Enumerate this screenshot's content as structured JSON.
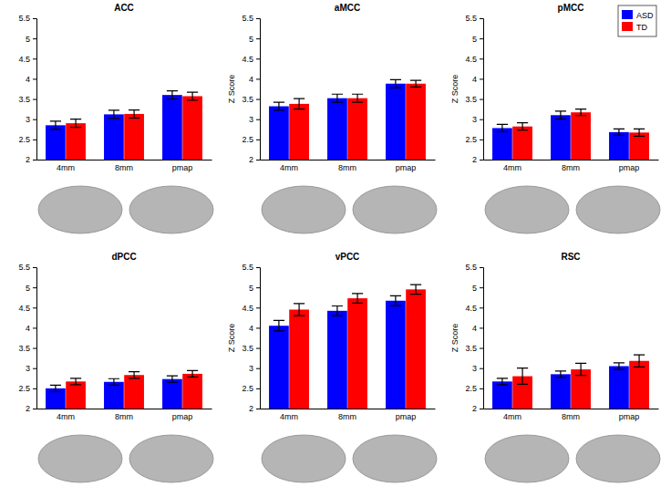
{
  "chart_data": [
    {
      "type": "bar",
      "title": "ACC",
      "categories": [
        "4mm",
        "8mm",
        "pmap"
      ],
      "series": [
        {
          "name": "ASD",
          "color": "#0000ff",
          "values": [
            2.85,
            3.12,
            3.6
          ],
          "errors": [
            0.1,
            0.1,
            0.1
          ]
        },
        {
          "name": "TD",
          "color": "#ff0000",
          "values": [
            2.9,
            3.13,
            3.57
          ],
          "errors": [
            0.1,
            0.1,
            0.1
          ]
        }
      ],
      "ylim": [
        2,
        5.5
      ],
      "yticks": [
        2,
        2.5,
        3,
        3.5,
        4,
        4.5,
        5,
        5.5
      ]
    },
    {
      "type": "bar",
      "title": "aMCC",
      "ylabel": "Z Score",
      "categories": [
        "4mm",
        "8mm",
        "pmap"
      ],
      "series": [
        {
          "name": "ASD",
          "color": "#0000ff",
          "values": [
            3.32,
            3.52,
            3.88
          ],
          "errors": [
            0.1,
            0.1,
            0.1
          ]
        },
        {
          "name": "TD",
          "color": "#ff0000",
          "values": [
            3.38,
            3.52,
            3.88
          ],
          "errors": [
            0.13,
            0.1,
            0.08
          ]
        }
      ],
      "ylim": [
        2,
        5.5
      ],
      "yticks": [
        2,
        2.5,
        3,
        3.5,
        4,
        4.5,
        5,
        5.5
      ]
    },
    {
      "type": "bar",
      "title": "pMCC",
      "ylabel": "Z Score",
      "categories": [
        "4mm",
        "8mm",
        "pmap"
      ],
      "series": [
        {
          "name": "ASD",
          "color": "#0000ff",
          "values": [
            2.78,
            3.1,
            2.68
          ],
          "errors": [
            0.09,
            0.1,
            0.08
          ]
        },
        {
          "name": "TD",
          "color": "#ff0000",
          "values": [
            2.82,
            3.17,
            2.67
          ],
          "errors": [
            0.09,
            0.08,
            0.09
          ]
        }
      ],
      "ylim": [
        2,
        5.5
      ],
      "yticks": [
        2,
        2.5,
        3,
        3.5,
        4,
        4.5,
        5,
        5.5
      ],
      "legend": "top-right"
    },
    {
      "type": "bar",
      "title": "dPCC",
      "categories": [
        "4mm",
        "8mm",
        "pmap"
      ],
      "series": [
        {
          "name": "ASD",
          "color": "#0000ff",
          "values": [
            2.5,
            2.66,
            2.73
          ],
          "errors": [
            0.08,
            0.08,
            0.08
          ]
        },
        {
          "name": "TD",
          "color": "#ff0000",
          "values": [
            2.67,
            2.83,
            2.86
          ],
          "errors": [
            0.08,
            0.08,
            0.08
          ]
        }
      ],
      "ylim": [
        2,
        5.5
      ],
      "yticks": [
        2,
        2.5,
        3,
        3.5,
        4,
        4.5,
        5,
        5.5
      ]
    },
    {
      "type": "bar",
      "title": "vPCC",
      "ylabel": "Z Score",
      "categories": [
        "4mm",
        "8mm",
        "pmap"
      ],
      "series": [
        {
          "name": "ASD",
          "color": "#0000ff",
          "values": [
            4.05,
            4.42,
            4.67
          ],
          "errors": [
            0.13,
            0.12,
            0.12
          ]
        },
        {
          "name": "TD",
          "color": "#ff0000",
          "values": [
            4.45,
            4.73,
            4.95
          ],
          "errors": [
            0.15,
            0.12,
            0.12
          ]
        }
      ],
      "ylim": [
        2,
        5.5
      ],
      "yticks": [
        2,
        2.5,
        3,
        3.5,
        4,
        4.5,
        5,
        5.5
      ]
    },
    {
      "type": "bar",
      "title": "RSC",
      "ylabel": "Z Score",
      "categories": [
        "4mm",
        "8mm",
        "pmap"
      ],
      "series": [
        {
          "name": "ASD",
          "color": "#0000ff",
          "values": [
            2.67,
            2.85,
            3.05
          ],
          "errors": [
            0.08,
            0.08,
            0.08
          ]
        },
        {
          "name": "TD",
          "color": "#ff0000",
          "values": [
            2.8,
            2.97,
            3.18
          ],
          "errors": [
            0.2,
            0.15,
            0.15
          ]
        }
      ],
      "ylim": [
        2,
        5.5
      ],
      "yticks": [
        2,
        2.5,
        3,
        3.5,
        4,
        4.5,
        5,
        5.5
      ]
    }
  ]
}
